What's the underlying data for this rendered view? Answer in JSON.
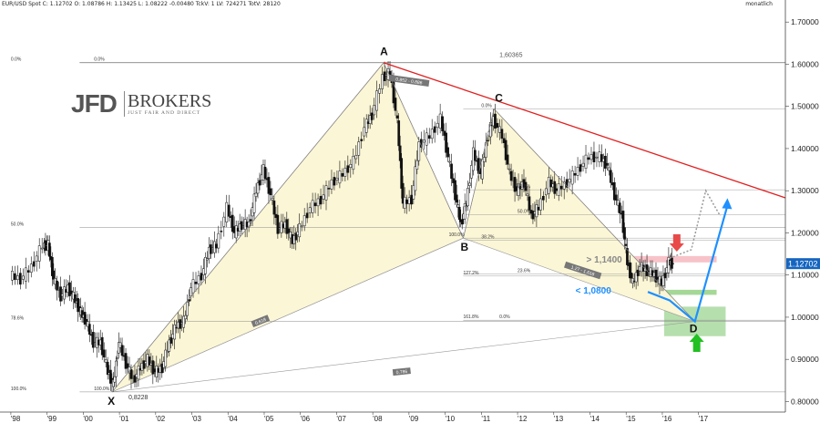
{
  "header": {
    "info": "EUR/USD Spot C: 1.12702 O: 1.08786 H: 1.13425 L: 1.08222 -0.00480 TckV: 1 LV: 724271 TotV: 28120",
    "frequency": "monatlich"
  },
  "logo": {
    "main": "JFD",
    "sub": "BROKERS",
    "tagline": "JUST FAIR AND DIRECT"
  },
  "chart_data": {
    "type": "line",
    "instrument": "EUR/USD Spot",
    "current_price": "1.12702",
    "y_axis": {
      "ticks": [
        0.8,
        0.9,
        1.0,
        1.1,
        1.2,
        1.3,
        1.4,
        1.5,
        1.6,
        1.7
      ],
      "tick_labels": [
        "0.80000",
        "0.90000",
        "1.00000",
        "1.10000",
        "1.20000",
        "1.30000",
        "1.40000",
        "1.50000",
        "1.60000",
        "1.70000"
      ],
      "range": [
        0.775,
        1.735
      ]
    },
    "x_axis": {
      "ticks": [
        1998,
        1999,
        2000,
        2001,
        2002,
        2003,
        2004,
        2005,
        2006,
        2007,
        2008,
        2009,
        2010,
        2011,
        2012,
        2013,
        2014,
        2015,
        2016,
        2017
      ],
      "tick_labels": [
        "'98",
        "'99",
        "'00",
        "'01",
        "'02",
        "'03",
        "'04",
        "'05",
        "'06",
        "'07",
        "'08",
        "'09",
        "'10",
        "'11",
        "'12",
        "'13",
        "'14",
        "'15",
        "'16",
        "'17"
      ],
      "range": [
        1997.7,
        2019.4
      ]
    },
    "pattern_points": [
      {
        "label": "X",
        "x": 2000.8,
        "y": 0.8228
      },
      {
        "label": "A",
        "x": 2008.3,
        "y": 1.60365
      },
      {
        "label": "B",
        "x": 2010.5,
        "y": 1.1876
      },
      {
        "label": "C",
        "x": 2011.35,
        "y": 1.4939
      },
      {
        "label": "D",
        "x": 2016.9,
        "y": 0.99
      }
    ],
    "price_labels": {
      "A": "1,60365",
      "X": "0,8228"
    },
    "fib_xa": [
      {
        "label": "0.0%",
        "y": 1.60365,
        "x": 1998.0
      },
      {
        "label": "50.0%",
        "y": 1.2132,
        "x": 1998.0
      },
      {
        "label": "78.6%",
        "y": 0.9899,
        "x": 1998.0
      },
      {
        "label": "100.0%",
        "y": 0.8228,
        "x": 1998.0
      }
    ],
    "fib_xa_extra": [
      {
        "label": "0.0%",
        "y": 1.60365,
        "x": 2000.3
      },
      {
        "label": "100.0%",
        "y": 0.8228,
        "x": 2000.3
      }
    ],
    "fib_bc": [
      {
        "label": "0.0%",
        "y": 1.4939,
        "x": 2011.0
      },
      {
        "label": "100.0%",
        "y": 1.1876,
        "x": 2010.1
      },
      {
        "label": "38.2%",
        "y": 1.1825,
        "x": 2011.0
      },
      {
        "label": "50.0%",
        "y": 1.2436,
        "x": 2012.0
      },
      {
        "label": "61.8%",
        "y": 1.3022,
        "x": 2012.0
      },
      {
        "label": "23.6%",
        "y": 1.1028,
        "x": 2012.0
      },
      {
        "label": "127.2%",
        "y": 1.0976,
        "x": 2010.5
      },
      {
        "label": "161.8%",
        "y": 0.9929,
        "x": 2010.5
      },
      {
        "label": "0.0%",
        "y": 0.9929,
        "x": 2011.5
      }
    ],
    "ratio_tags": [
      {
        "label": "0.852 - 0.886",
        "x": 2009.0,
        "y": 1.56,
        "angle": 8
      },
      {
        "label": "0.618",
        "x": 2004.9,
        "y": 0.99,
        "angle": -22
      },
      {
        "label": "0.786",
        "x": 2008.8,
        "y": 0.87,
        "angle": -6
      },
      {
        "label": "1.27 - 1.618",
        "x": 2013.8,
        "y": 1.11,
        "angle": 18
      }
    ],
    "annotations": {
      "resistance_label": "> 1,1400",
      "support_label": "< 1,0800",
      "resistance_zone": [
        1.13,
        1.145
      ],
      "support_zone": [
        1.053,
        1.065
      ],
      "prz_zone": [
        0.955,
        1.025
      ]
    },
    "trendline": {
      "from": {
        "x": 2008.3,
        "y": 1.6036
      },
      "to": {
        "x": 2019.4,
        "y": 1.283
      }
    },
    "projection_path": [
      {
        "x": 2015.6,
        "y": 1.06
      },
      {
        "x": 2016.2,
        "y": 1.04
      },
      {
        "x": 2016.9,
        "y": 0.99
      },
      {
        "x": 2017.8,
        "y": 1.265
      }
    ],
    "projection_alt": [
      {
        "x": 2016.2,
        "y": 1.14
      },
      {
        "x": 2016.8,
        "y": 1.16
      },
      {
        "x": 2017.2,
        "y": 1.3
      },
      {
        "x": 2017.6,
        "y": 1.24
      }
    ],
    "series": [
      {
        "values": [
          [
            1998.0,
            1.1
          ],
          [
            1998.3,
            1.09
          ],
          [
            1998.6,
            1.12
          ],
          [
            1998.9,
            1.17
          ],
          [
            1999.05,
            1.17
          ],
          [
            1999.2,
            1.09
          ],
          [
            1999.4,
            1.05
          ],
          [
            1999.6,
            1.07
          ],
          [
            1999.8,
            1.04
          ],
          [
            1999.95,
            1.01
          ],
          [
            2000.1,
            0.99
          ],
          [
            2000.3,
            0.94
          ],
          [
            2000.5,
            0.94
          ],
          [
            2000.7,
            0.87
          ],
          [
            2000.85,
            0.84
          ],
          [
            2001.0,
            0.94
          ],
          [
            2001.2,
            0.89
          ],
          [
            2001.4,
            0.85
          ],
          [
            2001.6,
            0.88
          ],
          [
            2001.8,
            0.9
          ],
          [
            2002.0,
            0.87
          ],
          [
            2002.2,
            0.88
          ],
          [
            2002.4,
            0.94
          ],
          [
            2002.6,
            0.98
          ],
          [
            2002.8,
            0.99
          ],
          [
            2003.0,
            1.07
          ],
          [
            2003.3,
            1.1
          ],
          [
            2003.5,
            1.16
          ],
          [
            2003.7,
            1.17
          ],
          [
            2004.0,
            1.26
          ],
          [
            2004.2,
            1.2
          ],
          [
            2004.4,
            1.22
          ],
          [
            2004.6,
            1.22
          ],
          [
            2004.8,
            1.3
          ],
          [
            2005.0,
            1.35
          ],
          [
            2005.2,
            1.29
          ],
          [
            2005.4,
            1.21
          ],
          [
            2005.6,
            1.22
          ],
          [
            2005.8,
            1.18
          ],
          [
            2006.0,
            1.21
          ],
          [
            2006.3,
            1.26
          ],
          [
            2006.6,
            1.28
          ],
          [
            2006.9,
            1.32
          ],
          [
            2007.2,
            1.34
          ],
          [
            2007.5,
            1.37
          ],
          [
            2007.8,
            1.45
          ],
          [
            2008.0,
            1.48
          ],
          [
            2008.3,
            1.57
          ],
          [
            2008.5,
            1.58
          ],
          [
            2008.7,
            1.46
          ],
          [
            2008.85,
            1.27
          ],
          [
            2009.1,
            1.28
          ],
          [
            2009.3,
            1.41
          ],
          [
            2009.6,
            1.43
          ],
          [
            2009.9,
            1.47
          ],
          [
            2010.1,
            1.38
          ],
          [
            2010.3,
            1.29
          ],
          [
            2010.45,
            1.22
          ],
          [
            2010.6,
            1.27
          ],
          [
            2010.8,
            1.39
          ],
          [
            2011.0,
            1.34
          ],
          [
            2011.2,
            1.43
          ],
          [
            2011.35,
            1.47
          ],
          [
            2011.6,
            1.43
          ],
          [
            2011.8,
            1.34
          ],
          [
            2012.0,
            1.3
          ],
          [
            2012.2,
            1.32
          ],
          [
            2012.4,
            1.24
          ],
          [
            2012.6,
            1.26
          ],
          [
            2012.9,
            1.32
          ],
          [
            2013.1,
            1.3
          ],
          [
            2013.4,
            1.32
          ],
          [
            2013.7,
            1.35
          ],
          [
            2014.0,
            1.38
          ],
          [
            2014.3,
            1.38
          ],
          [
            2014.5,
            1.36
          ],
          [
            2014.7,
            1.29
          ],
          [
            2014.9,
            1.24
          ],
          [
            2015.05,
            1.13
          ],
          [
            2015.2,
            1.08
          ],
          [
            2015.4,
            1.12
          ],
          [
            2015.6,
            1.11
          ],
          [
            2015.8,
            1.1
          ],
          [
            2016.0,
            1.08
          ],
          [
            2016.2,
            1.13
          ],
          [
            2016.3,
            1.127
          ]
        ]
      }
    ]
  }
}
